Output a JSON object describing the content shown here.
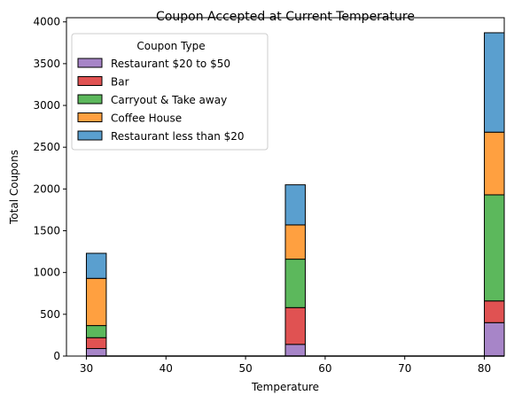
{
  "chart_data": {
    "type": "bar",
    "stacked": true,
    "title": "Coupon Accepted at Current Temperature",
    "xlabel": "Temperature",
    "ylabel": "Total Coupons",
    "xlim": [
      27.5,
      82.5
    ],
    "ylim": [
      0,
      4050
    ],
    "xticks": [
      30,
      40,
      50,
      60,
      70,
      80
    ],
    "yticks": [
      0,
      500,
      1000,
      1500,
      2000,
      2500,
      3000,
      3500,
      4000
    ],
    "bin_width": 2.5,
    "categories": [
      30,
      55,
      80
    ],
    "legend": {
      "title": "Coupon Type",
      "position": "top-left"
    },
    "series": [
      {
        "name": "Restaurant $20 to $50",
        "color": "#a785c8",
        "values": [
          90,
          140,
          400
        ]
      },
      {
        "name": "Bar",
        "color": "#e05252",
        "values": [
          130,
          440,
          260
        ]
      },
      {
        "name": "Carryout & Take away",
        "color": "#5cb85c",
        "values": [
          145,
          580,
          1270
        ]
      },
      {
        "name": "Coffee House",
        "color": "#ffa040",
        "values": [
          565,
          410,
          750
        ]
      },
      {
        "name": "Restaurant less than $20",
        "color": "#5a9fcf",
        "values": [
          300,
          480,
          1190
        ]
      }
    ],
    "grid": false
  }
}
